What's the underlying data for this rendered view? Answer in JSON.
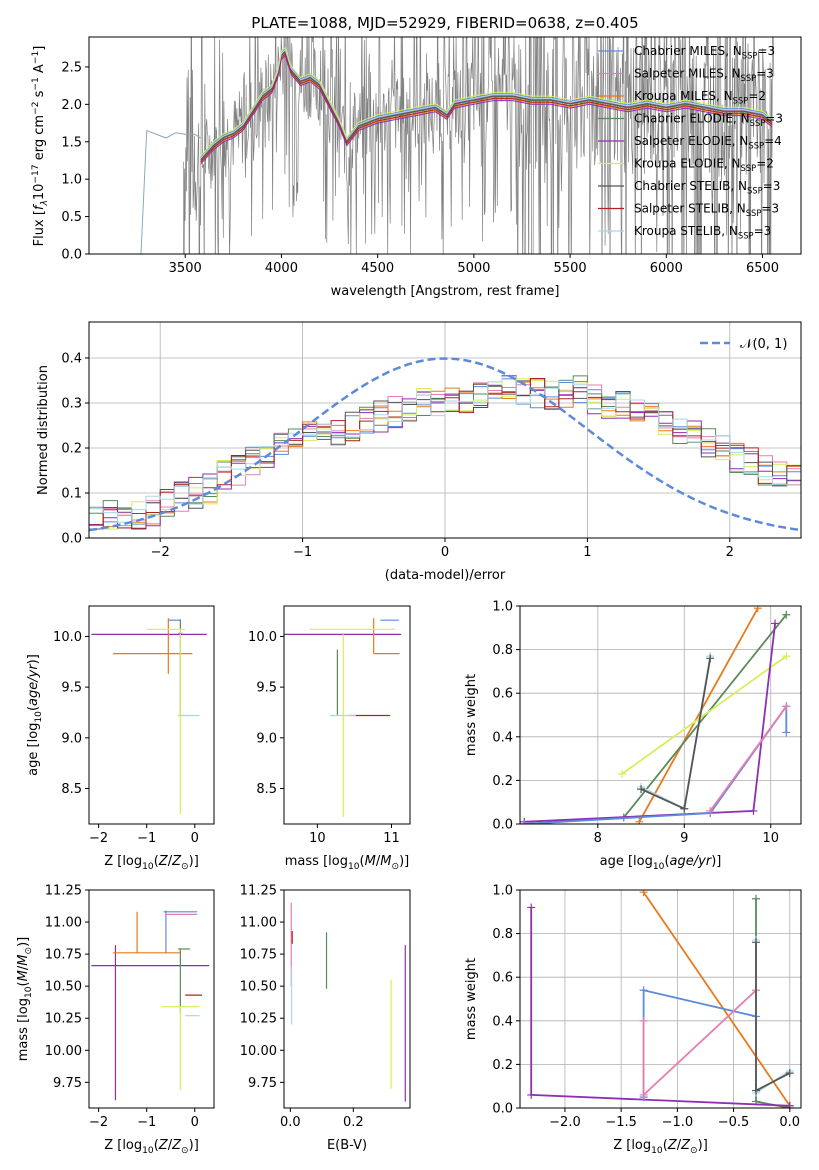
{
  "figure": {
    "title": "PLATE=1088, MJD=52929, FIBERID=0638, z=0.405"
  },
  "colors": {
    "Chabrier MILES": "#5b8bd9",
    "Salpeter MILES": "#e67eb2",
    "Kroupa MILES": "#e87a1c",
    "Chabrier ELODIE": "#5a8a5a",
    "Salpeter ELODIE": "#8e2fb3",
    "Kroupa ELODIE": "#d6ee5a",
    "Chabrier STELIB": "#555555",
    "Salpeter STELIB": "#b22222",
    "Kroupa STELIB": "#a8d8e8",
    "data": "#808080",
    "gaussian": "#5b8bd9"
  },
  "chart_data": [
    {
      "id": "spectrum",
      "type": "line",
      "title": "PLATE=1088, MJD=52929, FIBERID=0638, z=0.405",
      "xlabel": "wavelength [Angstrom, rest frame]",
      "ylabel": "Flux [f_λ 10^-17 erg cm^-2 s^-1 A^-1]",
      "xlim": [
        3000,
        6700
      ],
      "ylim": [
        0,
        2.9
      ],
      "xticks": [
        3500,
        4000,
        4500,
        5000,
        5500,
        6000,
        6500
      ],
      "yticks": [
        0.0,
        0.5,
        1.0,
        1.5,
        2.0,
        2.5
      ],
      "legend_position": "right",
      "legend": [
        {
          "name": "Chabrier MILES",
          "nssp": "3"
        },
        {
          "name": "Salpeter MILES",
          "nssp": "3"
        },
        {
          "name": "Kroupa MILES",
          "nssp": "2"
        },
        {
          "name": "Chabrier ELODIE",
          "nssp": "3"
        },
        {
          "name": "Salpeter ELODIE",
          "nssp": "4"
        },
        {
          "name": "Kroupa ELODIE",
          "nssp": "2"
        },
        {
          "name": "Chabrier STELIB",
          "nssp": "3"
        },
        {
          "name": "Salpeter STELIB",
          "nssp": "3"
        },
        {
          "name": "Kroupa STELIB",
          "nssp": "3"
        }
      ],
      "model_continuum": {
        "x": [
          3580,
          3650,
          3700,
          3750,
          3800,
          3850,
          3900,
          3950,
          3980,
          4000,
          4020,
          4050,
          4100,
          4150,
          4200,
          4250,
          4300,
          4340,
          4400,
          4500,
          4600,
          4700,
          4800,
          4860,
          4900,
          5000,
          5100,
          5200,
          5300,
          5400,
          5500,
          5600,
          5700,
          5800,
          5900,
          6000,
          6100,
          6200,
          6300,
          6400,
          6500,
          6550
        ],
        "y": [
          1.25,
          1.45,
          1.55,
          1.6,
          1.7,
          1.9,
          2.1,
          2.2,
          2.4,
          2.65,
          2.7,
          2.45,
          2.3,
          2.35,
          2.25,
          2.0,
          1.75,
          1.5,
          1.7,
          1.8,
          1.85,
          1.9,
          1.95,
          1.85,
          2.0,
          2.05,
          2.1,
          2.1,
          2.05,
          2.05,
          2.0,
          2.05,
          2.0,
          1.95,
          2.0,
          1.95,
          2.0,
          1.95,
          1.9,
          1.9,
          1.85,
          1.75
        ]
      },
      "stelib_extension": {
        "x": [
          3200,
          3270,
          3300,
          3350,
          3400,
          3450,
          3500,
          3550,
          3580
        ],
        "y": [
          0.0,
          0.0,
          1.65,
          1.6,
          1.55,
          1.62,
          1.6,
          1.6,
          1.55
        ]
      }
    },
    {
      "id": "residual-histogram",
      "type": "line",
      "xlabel": "(data-model)/error",
      "ylabel": "Normed distribution",
      "xlim": [
        -2.5,
        2.5
      ],
      "ylim": [
        0,
        0.48
      ],
      "xticks": [
        -2,
        -1,
        0,
        1,
        2
      ],
      "yticks": [
        0.0,
        0.1,
        0.2,
        0.3,
        0.4
      ],
      "grid": true,
      "legend_position": "top-right",
      "gaussian_label": "𝒩(0, 1)",
      "bin_width": 0.1,
      "histogram_envelope": [
        0.04,
        0.04,
        0.05,
        0.05,
        0.05,
        0.06,
        0.08,
        0.09,
        0.1,
        0.11,
        0.14,
        0.15,
        0.17,
        0.18,
        0.2,
        0.21,
        0.23,
        0.24,
        0.24,
        0.25,
        0.26,
        0.27,
        0.28,
        0.29,
        0.3,
        0.3,
        0.31,
        0.31,
        0.32,
        0.32,
        0.33,
        0.33,
        0.32,
        0.32,
        0.32,
        0.33,
        0.31,
        0.3,
        0.3,
        0.29,
        0.28,
        0.26,
        0.24,
        0.23,
        0.21,
        0.2,
        0.18,
        0.17,
        0.15,
        0.14,
        0.13,
        0.12,
        0.11,
        0.1,
        0.09,
        0.08,
        0.07,
        0.06,
        0.06,
        0.05,
        0.05,
        0.04
      ]
    },
    {
      "id": "age-vs-z",
      "type": "scatter",
      "xlabel": "Z [log10(Z/Z⊙)]",
      "ylabel": "age [log10(age/yr)]",
      "xlim": [
        -2.2,
        0.4
      ],
      "ylim": [
        8.15,
        10.3
      ],
      "xticks": [
        -2,
        -1,
        0
      ],
      "yticks": [
        8.5,
        9.0,
        9.5,
        10.0
      ],
      "errorbars": [
        {
          "model": "Salpeter ELODIE",
          "x": -0.8,
          "xerr": [
            1.35,
            1.05
          ],
          "y": 10.02,
          "yerr": [
            0.0,
            0.0
          ]
        },
        {
          "model": "Kroupa MILES",
          "x": -0.55,
          "xerr": [
            1.15,
            0.5
          ],
          "y": 9.83,
          "yerr": [
            0.2,
            0.35
          ]
        },
        {
          "model": "Chabrier ELODIE",
          "x": -0.3,
          "xerr": [
            0.05,
            0.05
          ],
          "y": 9.22,
          "yerr": [
            0.0,
            0.95
          ]
        },
        {
          "model": "Kroupa ELODIE",
          "x": -0.3,
          "xerr": [
            0.05,
            0.05
          ],
          "y": 9.22,
          "yerr": [
            0.97,
            0.85
          ]
        },
        {
          "model": "Kroupa STELIB",
          "x": -0.2,
          "xerr": [
            0.1,
            0.3
          ],
          "y": 9.22,
          "yerr": [
            0.0,
            0.0
          ]
        },
        {
          "model": "Chabrier MILES",
          "x": -0.3,
          "xerr": [
            0.25,
            0.0
          ],
          "y": 10.16,
          "yerr": [
            0.0,
            0.0
          ]
        },
        {
          "model": "Kroupa ELODIE",
          "x": -0.5,
          "xerr": [
            0.5,
            0.3
          ],
          "y": 10.07,
          "yerr": [
            0.0,
            0.0
          ]
        },
        {
          "model": "Salpeter MILES",
          "x": -0.35,
          "xerr": [
            0.0,
            0.1
          ],
          "y": 10.03,
          "yerr": [
            0.0,
            0.0
          ]
        }
      ]
    },
    {
      "id": "age-vs-mass",
      "type": "scatter",
      "xlabel": "mass [log10(M/M⊙)]",
      "xlim": [
        9.55,
        11.25
      ],
      "ylim": [
        8.15,
        10.3
      ],
      "xticks": [
        10,
        11
      ],
      "yticks": [
        8.5,
        9.0,
        9.5,
        10.0
      ],
      "errorbars": [
        {
          "model": "Salpeter ELODIE",
          "x": 10.38,
          "xerr": [
            0.9,
            0.75
          ],
          "y": 10.02,
          "yerr": [
            0.0,
            0.0
          ]
        },
        {
          "model": "Kroupa ELODIE",
          "x": 10.35,
          "xerr": [
            0.0,
            0.0
          ],
          "y": 10.02,
          "yerr": [
            1.8,
            0.0
          ]
        },
        {
          "model": "Kroupa MILES",
          "x": 10.76,
          "xerr": [
            0.0,
            0.35
          ],
          "y": 9.83,
          "yerr": [
            0.0,
            0.35
          ]
        },
        {
          "model": "Chabrier ELODIE",
          "x": 10.27,
          "xerr": [
            0.0,
            0.0
          ],
          "y": 9.22,
          "yerr": [
            0.0,
            0.65
          ]
        },
        {
          "model": "Salpeter STELIB",
          "x": 10.43,
          "xerr": [
            0.0,
            0.55
          ],
          "y": 9.22,
          "yerr": [
            0.0,
            0.0
          ]
        },
        {
          "model": "Kroupa STELIB",
          "x": 10.27,
          "xerr": [
            0.1,
            0.25
          ],
          "y": 9.22,
          "yerr": [
            0.0,
            0.0
          ]
        },
        {
          "model": "Kroupa ELODIE",
          "x": 10.35,
          "xerr": [
            0.45,
            0.7
          ],
          "y": 10.07,
          "yerr": [
            0.0,
            0.0
          ]
        },
        {
          "model": "Chabrier MILES",
          "x": 10.85,
          "xerr": [
            0.0,
            0.25
          ],
          "y": 10.16,
          "yerr": [
            0.0,
            0.0
          ]
        }
      ]
    },
    {
      "id": "massweight-vs-age",
      "type": "line",
      "xlabel": "age [log10(age/yr)]",
      "ylabel": "mass weight",
      "xlim": [
        7.1,
        10.35
      ],
      "ylim": [
        0,
        1.0
      ],
      "xticks": [
        8,
        9,
        10
      ],
      "yticks": [
        0.0,
        0.2,
        0.4,
        0.6,
        0.8,
        1.0
      ],
      "grid": true,
      "series": [
        {
          "model": "Kroupa MILES",
          "x": [
            8.48,
            9.85
          ],
          "y": [
            0.01,
            0.99
          ]
        },
        {
          "model": "Chabrier ELODIE",
          "x": [
            7.15,
            8.3,
            10.18
          ],
          "y": [
            0.0,
            0.03,
            0.96
          ]
        },
        {
          "model": "Kroupa ELODIE",
          "x": [
            8.28,
            10.18
          ],
          "y": [
            0.23,
            0.77
          ]
        },
        {
          "model": "Salpeter ELODIE",
          "x": [
            7.15,
            9.8,
            10.05
          ],
          "y": [
            0.01,
            0.06,
            0.92
          ]
        },
        {
          "model": "Chabrier MILES",
          "x": [
            7.15,
            9.3,
            10.18,
            10.18
          ],
          "y": [
            0.0,
            0.05,
            0.54,
            0.42
          ]
        },
        {
          "model": "Salpeter MILES",
          "x": [
            9.3,
            10.18
          ],
          "y": [
            0.06,
            0.54
          ]
        },
        {
          "model": "Kroupa STELIB",
          "x": [
            8.5,
            9.0,
            9.3
          ],
          "y": [
            0.17,
            0.07,
            0.77
          ]
        },
        {
          "model": "Chabrier STELIB",
          "x": [
            8.5,
            9.0,
            9.3
          ],
          "y": [
            0.16,
            0.07,
            0.76
          ]
        }
      ]
    },
    {
      "id": "mass-vs-z",
      "type": "scatter",
      "xlabel": "Z [log10(Z/Z⊙)]",
      "ylabel": "mass [log10(M/M⊙)]",
      "xlim": [
        -2.2,
        0.4
      ],
      "ylim": [
        9.55,
        11.25
      ],
      "xticks": [
        -2,
        -1,
        0
      ],
      "yticks": [
        9.75,
        10.0,
        10.25,
        10.5,
        10.75,
        11.0,
        11.25
      ],
      "errorbars": [
        {
          "model": "Salpeter ELODIE",
          "x": -1.65,
          "xerr": [
            0.5,
            1.95
          ],
          "y": 10.66,
          "yerr": [
            1.05,
            0.16
          ]
        },
        {
          "model": "Kroupa MILES",
          "x": -1.2,
          "xerr": [
            0.5,
            0.9
          ],
          "y": 10.76,
          "yerr": [
            0.0,
            0.32
          ]
        },
        {
          "model": "Chabrier MILES",
          "x": -0.6,
          "xerr": [
            0.0,
            0.0
          ],
          "y": 10.76,
          "yerr": [
            0.0,
            0.33
          ]
        },
        {
          "model": "Salpeter MILES",
          "x": -0.2,
          "xerr": [
            0.4,
            0.25
          ],
          "y": 11.06,
          "yerr": [
            0.0,
            0.0
          ]
        },
        {
          "model": "Chabrier MILES",
          "x": -0.2,
          "xerr": [
            0.45,
            0.25
          ],
          "y": 11.08,
          "yerr": [
            0.0,
            0.0
          ]
        },
        {
          "model": "Chabrier ELODIE",
          "x": -0.3,
          "xerr": [
            0.05,
            0.2
          ],
          "y": 10.79,
          "yerr": [
            0.5,
            0.0
          ]
        },
        {
          "model": "Kroupa ELODIE",
          "x": -0.3,
          "xerr": [
            0.4,
            0.4
          ],
          "y": 10.34,
          "yerr": [
            0.65,
            0.0
          ]
        },
        {
          "model": "Salpeter STELIB",
          "x": -0.2,
          "xerr": [
            0.0,
            0.35
          ],
          "y": 10.43,
          "yerr": [
            0.0,
            0.0
          ]
        },
        {
          "model": "Kroupa STELIB",
          "x": -0.2,
          "xerr": [
            0.0,
            0.3
          ],
          "y": 10.27,
          "yerr": [
            0.0,
            0.0
          ]
        }
      ]
    },
    {
      "id": "mass-vs-ebv",
      "type": "scatter",
      "xlabel": "E(B-V)",
      "xlim": [
        -0.02,
        0.38
      ],
      "ylim": [
        9.55,
        11.25
      ],
      "xticks": [
        0.0,
        0.2
      ],
      "yticks": [
        9.75,
        10.0,
        10.25,
        10.5,
        10.75,
        11.0,
        11.25
      ],
      "errorbars": [
        {
          "model": "Salpeter MILES",
          "x": 0.003,
          "y": 10.8,
          "yerr": [
            0.3,
            0.35
          ]
        },
        {
          "model": "Salpeter STELIB",
          "x": 0.006,
          "y": 10.88,
          "yerr": [
            0.05,
            0.05
          ]
        },
        {
          "model": "Kroupa STELIB",
          "x": 0.004,
          "y": 10.3,
          "yerr": [
            0.1,
            0.35
          ]
        },
        {
          "model": "Chabrier ELODIE",
          "x": 0.115,
          "y": 10.7,
          "yerr": [
            0.22,
            0.22
          ]
        },
        {
          "model": "Kroupa ELODIE",
          "x": 0.32,
          "y": 10.1,
          "yerr": [
            0.4,
            0.45
          ]
        },
        {
          "model": "Salpeter ELODIE",
          "x": 0.365,
          "y": 10.2,
          "yerr": [
            0.6,
            0.62
          ]
        }
      ]
    },
    {
      "id": "massweight-vs-z",
      "type": "line",
      "xlabel": "Z [log10(Z/Z⊙)]",
      "ylabel": "mass weight",
      "xlim": [
        -2.4,
        0.1
      ],
      "ylim": [
        0,
        1.0
      ],
      "xticks": [
        -2.0,
        -1.5,
        -1.0,
        -0.5,
        0.0
      ],
      "yticks": [
        0.0,
        0.2,
        0.4,
        0.6,
        0.8,
        1.0
      ],
      "grid": true,
      "series": [
        {
          "model": "Kroupa MILES",
          "x": [
            -1.3,
            0.0
          ],
          "y": [
            0.99,
            0.01
          ]
        },
        {
          "model": "Chabrier ELODIE",
          "x": [
            -0.3,
            -0.3,
            0.0
          ],
          "y": [
            0.96,
            0.03,
            0.0
          ]
        },
        {
          "model": "Salpeter ELODIE",
          "x": [
            -2.3,
            -2.3,
            0.0
          ],
          "y": [
            0.92,
            0.06,
            0.01
          ]
        },
        {
          "model": "Chabrier MILES",
          "x": [
            -1.3,
            -1.3,
            -0.3
          ],
          "y": [
            0.05,
            0.54,
            0.42
          ]
        },
        {
          "model": "Salpeter MILES",
          "x": [
            -1.3,
            -1.3,
            -0.3
          ],
          "y": [
            0.4,
            0.06,
            0.54
          ]
        },
        {
          "model": "Kroupa STELIB",
          "x": [
            -0.3,
            -0.3,
            0.0
          ],
          "y": [
            0.77,
            0.07,
            0.17
          ]
        },
        {
          "model": "Chabrier STELIB",
          "x": [
            -0.3,
            -0.3,
            0.0
          ],
          "y": [
            0.76,
            0.08,
            0.16
          ]
        }
      ]
    }
  ]
}
